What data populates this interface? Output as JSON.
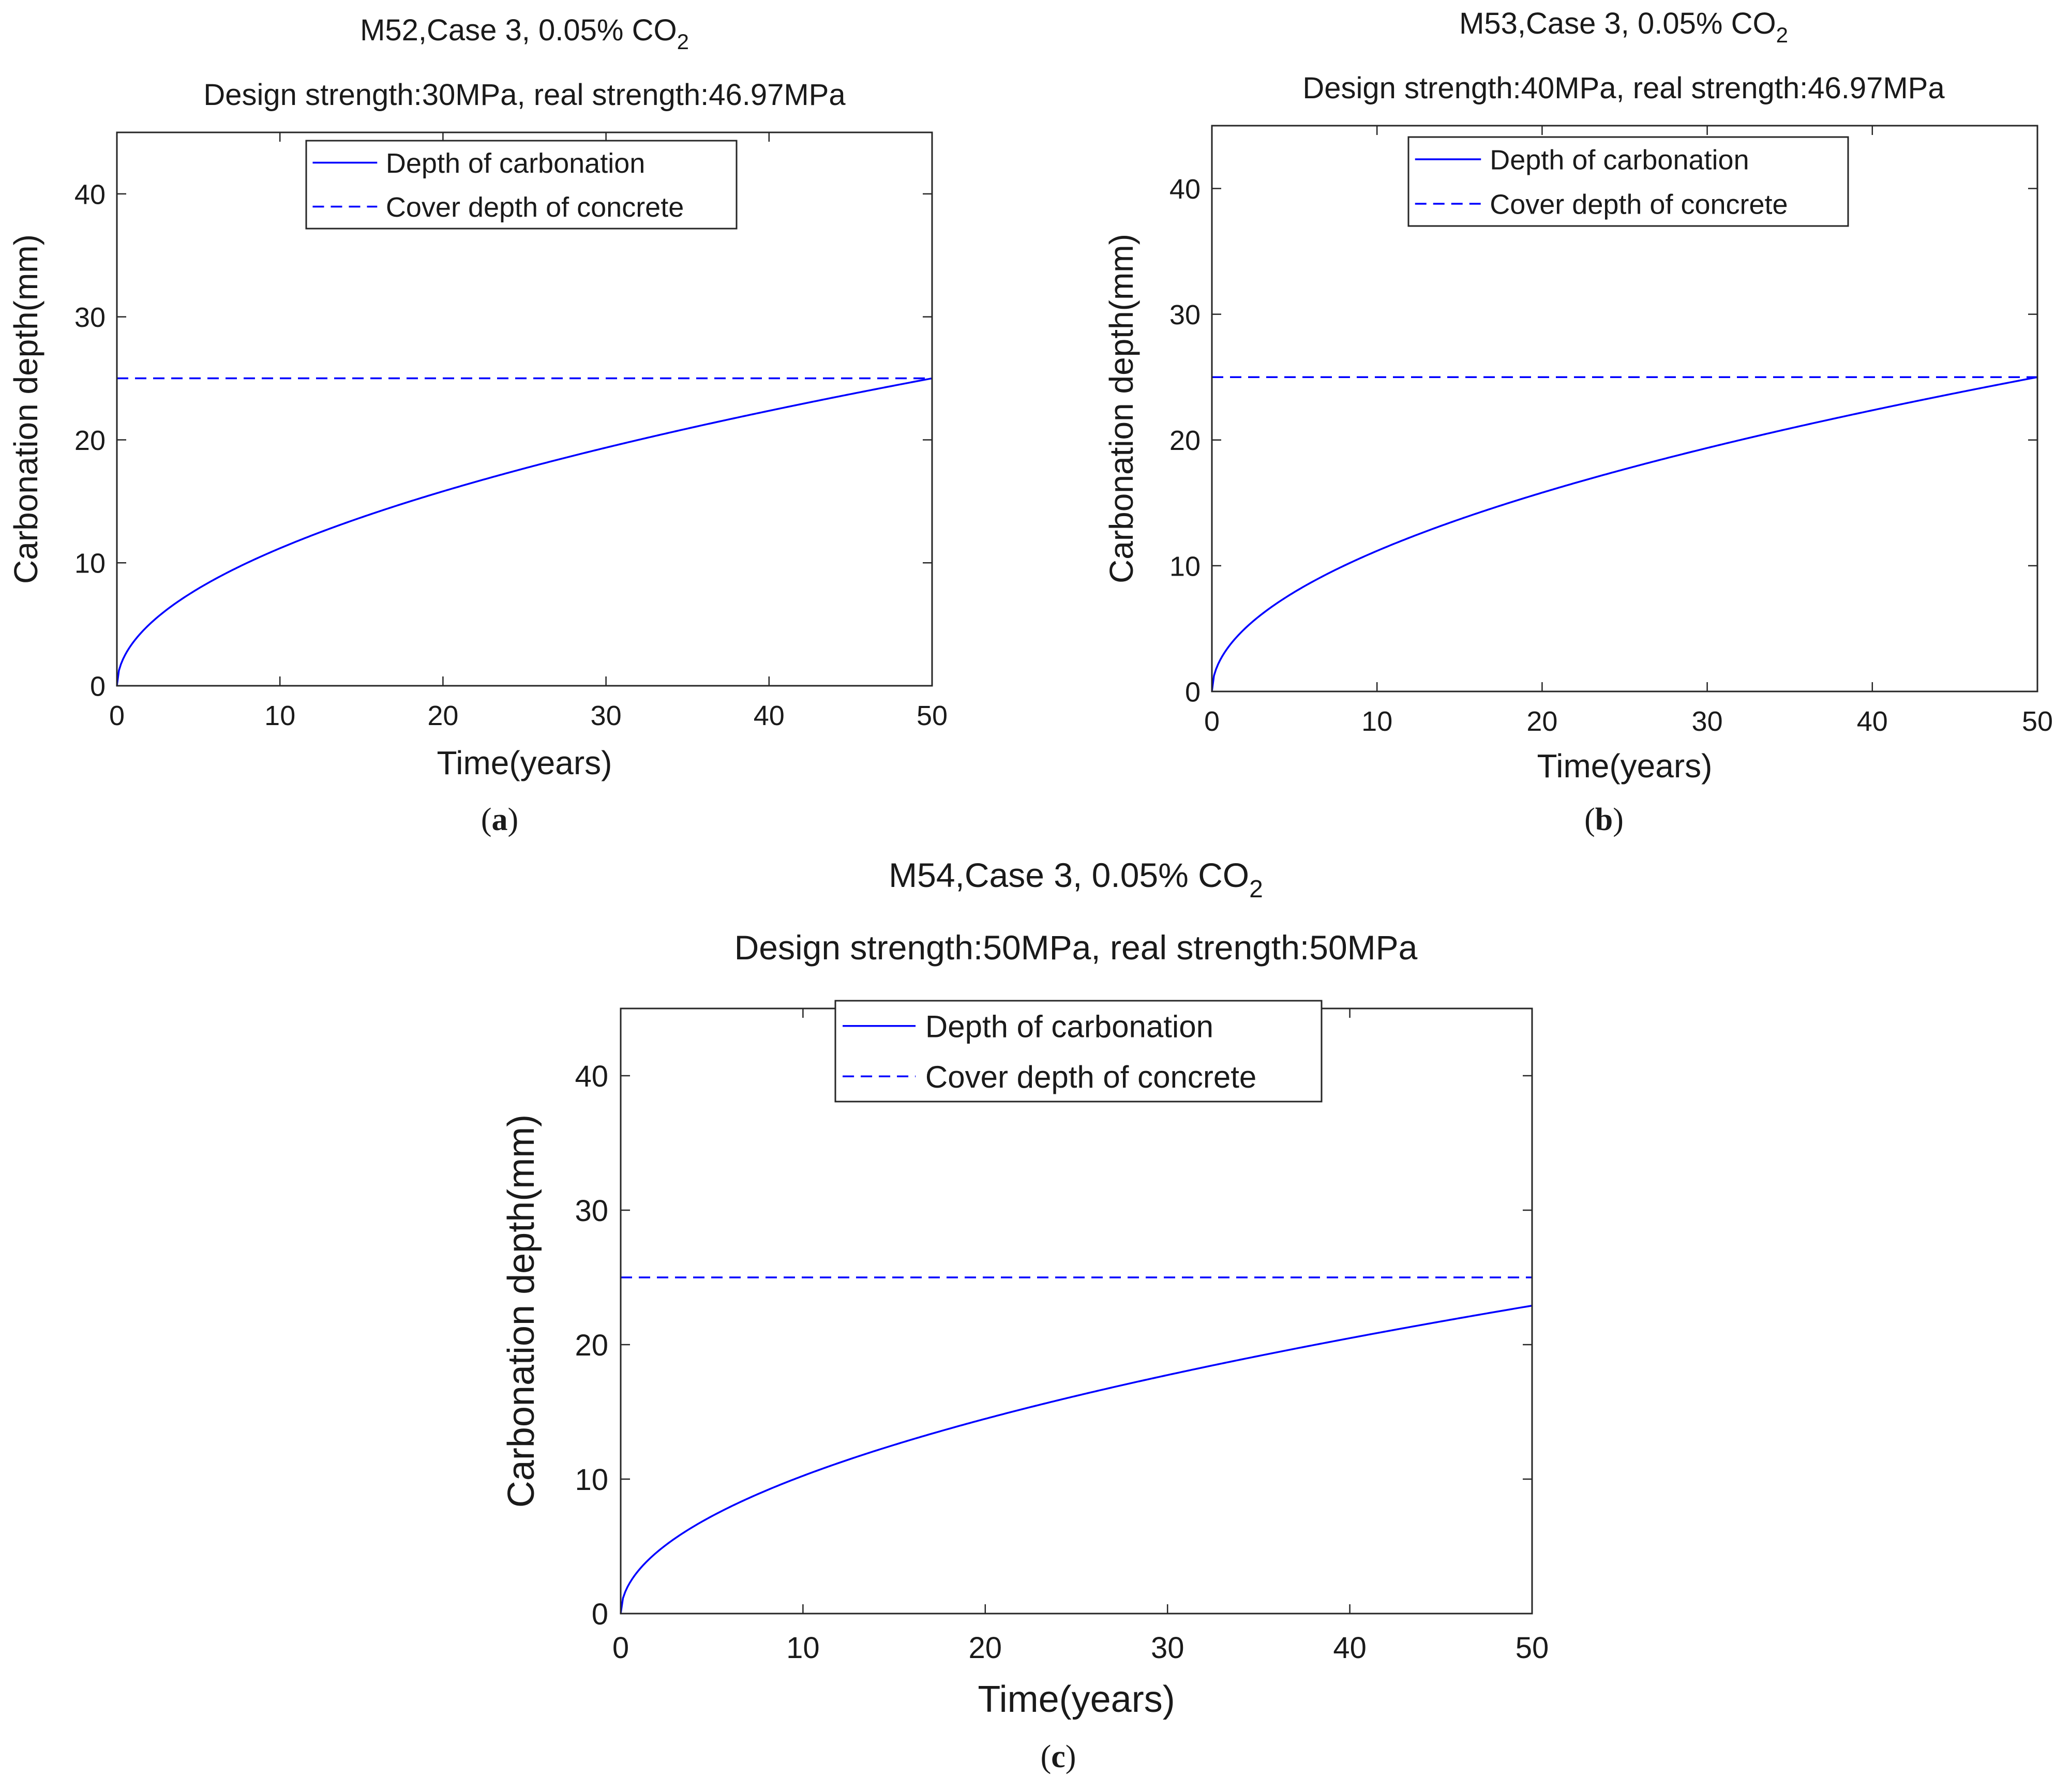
{
  "chart_data": [
    {
      "type": "line",
      "panel": "a",
      "panel_label": "(a)",
      "title_main": "M52,Case 3, 0.05% CO",
      "title_sub": "2",
      "subtitle": "Design strength:30MPa, real strength:46.97MPa",
      "xlabel": "Time(years)",
      "ylabel": "Carbonation depth(mm)",
      "xlim": [
        0,
        50
      ],
      "ylim": [
        0,
        45
      ],
      "xticks": [
        0,
        10,
        20,
        30,
        40,
        50
      ],
      "yticks": [
        0,
        10,
        20,
        30,
        40
      ],
      "legend_position": "top-center",
      "series": [
        {
          "name": "Depth of carbonation",
          "style": "solid",
          "color": "#0000ff",
          "model": "sqrt",
          "end_value": 25.0
        },
        {
          "name": "Cover depth of concrete",
          "style": "dashed",
          "color": "#0000ff",
          "model": "constant",
          "end_value": 25.0
        }
      ]
    },
    {
      "type": "line",
      "panel": "b",
      "panel_label": "(b)",
      "title_main": "M53,Case 3, 0.05% CO",
      "title_sub": "2",
      "subtitle": "Design strength:40MPa, real strength:46.97MPa",
      "xlabel": "Time(years)",
      "ylabel": "Carbonation depth(mm)",
      "xlim": [
        0,
        50
      ],
      "ylim": [
        0,
        45
      ],
      "xticks": [
        0,
        10,
        20,
        30,
        40,
        50
      ],
      "yticks": [
        0,
        10,
        20,
        30,
        40
      ],
      "legend_position": "top-center",
      "series": [
        {
          "name": "Depth of carbonation",
          "style": "solid",
          "color": "#0000ff",
          "model": "sqrt",
          "end_value": 25.0
        },
        {
          "name": "Cover depth of concrete",
          "style": "dashed",
          "color": "#0000ff",
          "model": "constant",
          "end_value": 25.0
        }
      ]
    },
    {
      "type": "line",
      "panel": "c",
      "panel_label": "(c)",
      "title_main": "M54,Case 3, 0.05% CO",
      "title_sub": "2",
      "subtitle": "Design strength:50MPa, real strength:50MPa",
      "xlabel": "Time(years)",
      "ylabel": "Carbonation depth(mm)",
      "xlim": [
        0,
        50
      ],
      "ylim": [
        0,
        45
      ],
      "xticks": [
        0,
        10,
        20,
        30,
        40,
        50
      ],
      "yticks": [
        0,
        10,
        20,
        30,
        40
      ],
      "legend_position": "top-center",
      "series": [
        {
          "name": "Depth of carbonation",
          "style": "solid",
          "color": "#0000ff",
          "model": "sqrt",
          "end_value": 22.9
        },
        {
          "name": "Cover depth of concrete",
          "style": "dashed",
          "color": "#0000ff",
          "model": "constant",
          "end_value": 25.0
        }
      ]
    }
  ]
}
